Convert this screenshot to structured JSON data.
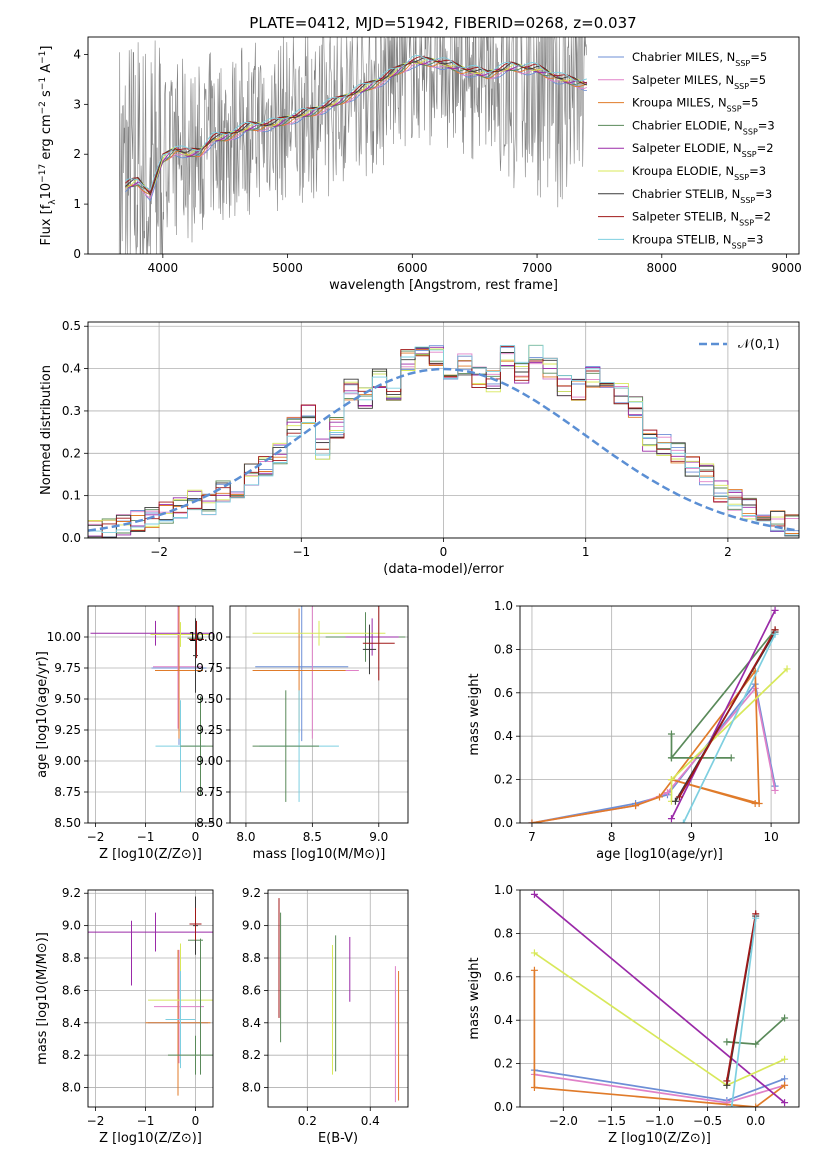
{
  "figure": {
    "title": "PLATE=0412, MJD=51942, FIBERID=0268, z=0.037"
  },
  "colors": {
    "chabrier_miles": "#6d8fd6",
    "salpeter_miles": "#e081c8",
    "kroupa_miles": "#e07b2a",
    "chabrier_elodie": "#5a8a5a",
    "salpeter_elodie": "#9a2aa8",
    "kroupa_elodie": "#d8e85a",
    "chabrier_stelib": "#3a3a3a",
    "salpeter_stelib": "#a01818",
    "kroupa_stelib": "#7ecfe0",
    "data": "#808080",
    "normal": "#5b8fd4"
  },
  "legend": [
    {
      "name": "Chabrier MILES",
      "n": "5",
      "color_key": "chabrier_miles"
    },
    {
      "name": "Salpeter MILES",
      "n": "5",
      "color_key": "salpeter_miles"
    },
    {
      "name": "Kroupa MILES",
      "n": "5",
      "color_key": "kroupa_miles"
    },
    {
      "name": "Chabrier ELODIE",
      "n": "3",
      "color_key": "chabrier_elodie"
    },
    {
      "name": "Salpeter ELODIE",
      "n": "2",
      "color_key": "salpeter_elodie"
    },
    {
      "name": "Kroupa ELODIE",
      "n": "3",
      "color_key": "kroupa_elodie"
    },
    {
      "name": "Chabrier STELIB",
      "n": "3",
      "color_key": "chabrier_stelib"
    },
    {
      "name": "Salpeter STELIB",
      "n": "2",
      "color_key": "salpeter_stelib"
    },
    {
      "name": "Kroupa STELIB",
      "n": "3",
      "color_key": "kroupa_stelib"
    }
  ],
  "legend_n_prefix": "N",
  "legend_n_sub": "SSP",
  "chart_data": [
    {
      "id": "spectrum",
      "type": "line",
      "xlabel": "wavelength [Angstrom, rest frame]",
      "ylabel_parts": [
        "Flux [f",
        "λ",
        "10",
        "−17",
        " erg cm",
        "−2",
        " s",
        "−1",
        " A",
        "−1",
        "]"
      ],
      "xlim": [
        3400,
        9100
      ],
      "ylim": [
        0,
        4.35
      ],
      "xticks": [
        "4000",
        "5000",
        "6000",
        "7000",
        "8000",
        "9000"
      ],
      "xtick_values": [
        4000,
        5000,
        6000,
        7000,
        8000,
        9000
      ],
      "yticks": [
        "0",
        "1",
        "2",
        "3",
        "4"
      ],
      "ytick_values": [
        0,
        1,
        2,
        3,
        4
      ],
      "grid": false,
      "legend_position": "upper-right",
      "data_range": [
        3650,
        7400
      ],
      "model_knots_x": [
        3700,
        3800,
        3900,
        4000,
        4100,
        4200,
        4300,
        4400,
        4500,
        4700,
        4900,
        5000,
        5200,
        5400,
        5600,
        5800,
        6000,
        6200,
        6400,
        6600,
        6800,
        7000,
        7200,
        7400
      ],
      "model_knots_y": [
        1.35,
        1.45,
        1.2,
        1.9,
        2.1,
        2.0,
        2.05,
        2.3,
        2.35,
        2.55,
        2.6,
        2.7,
        2.85,
        3.05,
        3.3,
        3.55,
        3.85,
        3.85,
        3.7,
        3.6,
        3.75,
        3.7,
        3.5,
        3.4
      ]
    },
    {
      "id": "residuals",
      "type": "bar",
      "xlabel": "(data-model)/error",
      "ylabel": "Normed distribution",
      "xlim": [
        -2.5,
        2.5
      ],
      "ylim": [
        0,
        0.51
      ],
      "xticks": [
        "−2",
        "−1",
        "0",
        "1",
        "2"
      ],
      "xtick_values": [
        -2,
        -1,
        0,
        1,
        2
      ],
      "yticks": [
        "0.0",
        "0.1",
        "0.2",
        "0.3",
        "0.4",
        "0.5"
      ],
      "ytick_values": [
        0,
        0.1,
        0.2,
        0.3,
        0.4,
        0.5
      ],
      "grid": true,
      "legend": "𝒩(0,1)",
      "legend_position": "upper-right",
      "bin_width": 0.1,
      "bin_start": -2.5,
      "hist_values": [
        0.02,
        0.02,
        0.03,
        0.04,
        0.05,
        0.06,
        0.07,
        0.09,
        0.08,
        0.11,
        0.12,
        0.15,
        0.17,
        0.2,
        0.26,
        0.29,
        0.21,
        0.26,
        0.35,
        0.33,
        0.38,
        0.35,
        0.42,
        0.44,
        0.43,
        0.36,
        0.41,
        0.38,
        0.37,
        0.43,
        0.39,
        0.43,
        0.4,
        0.36,
        0.35,
        0.38,
        0.35,
        0.34,
        0.31,
        0.23,
        0.22,
        0.2,
        0.17,
        0.15,
        0.11,
        0.09,
        0.07,
        0.06,
        0.04,
        0.03
      ]
    },
    {
      "id": "age_vs_Z",
      "type": "scatter",
      "xlabel": "Z [log10(Z/Z⊙)]",
      "ylabel": "age  [log10(age/yr)]",
      "xlim": [
        -2.15,
        0.35
      ],
      "ylim": [
        8.5,
        10.25
      ],
      "xticks": [
        "−2",
        "−1",
        "0"
      ],
      "xtick_values": [
        -2,
        -1,
        0
      ],
      "yticks": [
        "8.50",
        "8.75",
        "9.00",
        "9.25",
        "9.50",
        "9.75",
        "10.00"
      ],
      "ytick_values": [
        8.5,
        8.75,
        9.0,
        9.25,
        9.5,
        9.75,
        10.0
      ],
      "grid": true,
      "points": [
        {
          "x": -0.33,
          "y": 9.75,
          "xerr": 0.55,
          "yerr": 0.62,
          "c": "chabrier_miles"
        },
        {
          "x": -0.35,
          "y": 9.76,
          "xerr": 0.5,
          "yerr": 0.5,
          "c": "salpeter_miles"
        },
        {
          "x": -0.33,
          "y": 9.73,
          "xerr": 0.48,
          "yerr": 0.55,
          "c": "kroupa_miles"
        },
        {
          "x": 0.0,
          "y": 9.99,
          "xerr": 0.16,
          "yerr": 0.16,
          "c": "chabrier_elodie"
        },
        {
          "x": -0.8,
          "y": 10.03,
          "xerr": 1.3,
          "yerr": 0.1,
          "c": "salpeter_elodie"
        },
        {
          "x": -0.3,
          "y": 10.02,
          "xerr": 0.6,
          "yerr": 0.1,
          "c": "kroupa_elodie"
        },
        {
          "x": 0.0,
          "y": 9.85,
          "xerr": 0.05,
          "yerr": 0.3,
          "c": "chabrier_stelib"
        },
        {
          "x": 0.02,
          "y": 9.98,
          "xerr": 0.15,
          "yerr": 0.15,
          "c": "salpeter_stelib"
        },
        {
          "x": -0.3,
          "y": 9.12,
          "xerr": 0.5,
          "yerr": 0.37,
          "c": "kroupa_stelib"
        },
        {
          "x": 0.1,
          "y": 9.12,
          "xerr": 0.4,
          "yerr": 0.4,
          "c": "chabrier_elodie"
        }
      ]
    },
    {
      "id": "age_vs_mass",
      "type": "scatter",
      "xlabel": "mass [log10(M/M⊙)]",
      "xlim": [
        7.88,
        9.22
      ],
      "ylim": [
        8.5,
        10.25
      ],
      "xticks": [
        "8.0",
        "8.5",
        "9.0"
      ],
      "xtick_values": [
        8.0,
        8.5,
        9.0
      ],
      "yticks": [
        "8.50",
        "8.75",
        "9.00",
        "9.25",
        "9.50",
        "9.75",
        "10.00"
      ],
      "ytick_values": [
        8.5,
        8.75,
        9.0,
        9.25,
        9.5,
        9.75,
        10.0
      ],
      "grid": true,
      "points": [
        {
          "x": 8.42,
          "y": 9.76,
          "xerr": 0.35,
          "yerr": 0.6,
          "c": "chabrier_miles"
        },
        {
          "x": 8.5,
          "y": 9.73,
          "xerr": 0.35,
          "yerr": 0.55,
          "c": "salpeter_miles"
        },
        {
          "x": 8.4,
          "y": 9.73,
          "xerr": 0.35,
          "yerr": 0.5,
          "c": "kroupa_miles"
        },
        {
          "x": 8.9,
          "y": 10.0,
          "xerr": 0.3,
          "yerr": 0.2,
          "c": "chabrier_elodie"
        },
        {
          "x": 8.95,
          "y": 10.0,
          "xerr": 0.2,
          "yerr": 0.15,
          "c": "salpeter_elodie"
        },
        {
          "x": 8.55,
          "y": 10.03,
          "xerr": 0.5,
          "yerr": 0.1,
          "c": "kroupa_elodie"
        },
        {
          "x": 8.93,
          "y": 9.9,
          "xerr": 0.05,
          "yerr": 0.2,
          "c": "chabrier_stelib"
        },
        {
          "x": 9.0,
          "y": 9.95,
          "xerr": 0.12,
          "yerr": 0.3,
          "c": "salpeter_stelib"
        },
        {
          "x": 8.4,
          "y": 9.12,
          "xerr": 0.3,
          "yerr": 0.45,
          "c": "kroupa_stelib"
        },
        {
          "x": 8.3,
          "y": 9.12,
          "xerr": 0.25,
          "yerr": 0.45,
          "c": "chabrier_elodie"
        }
      ]
    },
    {
      "id": "weight_vs_age",
      "type": "line",
      "xlabel": "age  [log10(age/yr)]",
      "ylabel": "mass weight",
      "xlim": [
        6.85,
        10.35
      ],
      "ylim": [
        0,
        1.0
      ],
      "xticks": [
        "7",
        "8",
        "9",
        "10"
      ],
      "xtick_values": [
        7,
        8,
        9,
        10
      ],
      "yticks": [
        "0.0",
        "0.2",
        "0.4",
        "0.6",
        "0.8",
        "1.0"
      ],
      "ytick_values": [
        0,
        0.2,
        0.4,
        0.6,
        0.8,
        1.0
      ],
      "grid": true,
      "series": [
        {
          "c": "chabrier_miles",
          "x": [
            7.0,
            8.3,
            8.7,
            9.8,
            10.05
          ],
          "y": [
            0.0,
            0.09,
            0.13,
            0.64,
            0.17
          ]
        },
        {
          "c": "salpeter_miles",
          "x": [
            7.0,
            8.3,
            8.7,
            9.8,
            10.05
          ],
          "y": [
            0.0,
            0.08,
            0.14,
            0.62,
            0.15
          ]
        },
        {
          "c": "kroupa_miles",
          "x": [
            7.0,
            8.3,
            8.6,
            9.8,
            9.85,
            8.75,
            9.8
          ],
          "y": [
            0.0,
            0.08,
            0.12,
            0.7,
            0.09,
            0.2,
            0.09
          ]
        },
        {
          "c": "chabrier_elodie",
          "x": [
            8.75,
            8.75,
            9.5,
            8.75,
            10.05
          ],
          "y": [
            0.41,
            0.3,
            0.3,
            0.3,
            0.89
          ]
        },
        {
          "c": "salpeter_elodie",
          "x": [
            8.75,
            10.05
          ],
          "y": [
            0.02,
            0.98
          ]
        },
        {
          "c": "kroupa_elodie",
          "x": [
            8.75,
            8.75,
            10.2
          ],
          "y": [
            0.1,
            0.2,
            0.71
          ]
        },
        {
          "c": "chabrier_stelib",
          "x": [
            8.8,
            10.05
          ],
          "y": [
            0.1,
            0.88
          ]
        },
        {
          "c": "salpeter_stelib",
          "x": [
            8.85,
            10.05
          ],
          "y": [
            0.12,
            0.89
          ]
        },
        {
          "c": "kroupa_stelib",
          "x": [
            8.9,
            10.05
          ],
          "y": [
            0.0,
            0.87
          ]
        }
      ]
    },
    {
      "id": "mass_vs_Z",
      "type": "scatter",
      "xlabel": "Z [log10(Z/Z⊙)]",
      "ylabel": "mass [log10(M/M⊙)]",
      "xlim": [
        -2.15,
        0.35
      ],
      "ylim": [
        7.88,
        9.22
      ],
      "xticks": [
        "−2",
        "−1",
        "0"
      ],
      "xtick_values": [
        -2,
        -1,
        0
      ],
      "yticks": [
        "8.0",
        "8.2",
        "8.4",
        "8.6",
        "8.8",
        "9.0",
        "9.2"
      ],
      "ytick_values": [
        8.0,
        8.2,
        8.4,
        8.6,
        8.8,
        9.0,
        9.2
      ],
      "grid": true,
      "points": [
        {
          "x": -0.35,
          "y": 8.4,
          "xerr": 0.6,
          "yerr": 0.35,
          "c": "chabrier_miles"
        },
        {
          "x": -0.33,
          "y": 8.5,
          "xerr": 0.5,
          "yerr": 0.35,
          "c": "salpeter_miles"
        },
        {
          "x": -0.35,
          "y": 8.4,
          "xerr": 0.65,
          "yerr": 0.45,
          "c": "kroupa_miles"
        },
        {
          "x": 0.0,
          "y": 8.91,
          "xerr": 0.15,
          "yerr": 0.05,
          "c": "chabrier_elodie"
        },
        {
          "x": -0.8,
          "y": 8.96,
          "xerr": 1.35,
          "yerr": 0.12,
          "c": "salpeter_elodie"
        },
        {
          "x": -0.3,
          "y": 8.54,
          "xerr": 0.65,
          "yerr": 0.35,
          "c": "kroupa_elodie"
        },
        {
          "x": 0.0,
          "y": 9.0,
          "xerr": 0.05,
          "yerr": 0.18,
          "c": "chabrier_stelib"
        },
        {
          "x": 0.0,
          "y": 9.01,
          "xerr": 0.12,
          "yerr": 0.1,
          "c": "salpeter_stelib"
        },
        {
          "x": -0.3,
          "y": 8.42,
          "xerr": 0.3,
          "yerr": 0.3,
          "c": "kroupa_stelib"
        },
        {
          "x": 0.0,
          "y": 8.2,
          "xerr": 0.55,
          "yerr": 0.12,
          "c": "chabrier_elodie"
        },
        {
          "x": -1.28,
          "y": 8.83,
          "xerr": 0.0,
          "yerr": 0.2,
          "c": "salpeter_elodie"
        },
        {
          "x": 0.1,
          "y": 8.5,
          "xerr": 0.0,
          "yerr": 0.42,
          "c": "chabrier_elodie"
        }
      ]
    },
    {
      "id": "mass_vs_ebv",
      "type": "scatter",
      "xlabel": "E(B-V)",
      "xlim": [
        0.075,
        0.52
      ],
      "ylim": [
        7.88,
        9.22
      ],
      "xticks": [
        "0.2",
        "0.4"
      ],
      "xtick_values": [
        0.2,
        0.4
      ],
      "yticks": [
        "8.0",
        "8.2",
        "8.4",
        "8.6",
        "8.8",
        "9.0",
        "9.2"
      ],
      "ytick_values": [
        8.0,
        8.2,
        8.4,
        8.6,
        8.8,
        9.0,
        9.2
      ],
      "grid": true,
      "points": [
        {
          "x": 0.11,
          "y": 8.8,
          "xerr": 0.0,
          "yerr": 0.37,
          "c": "salpeter_stelib"
        },
        {
          "x": 0.115,
          "y": 8.68,
          "xerr": 0.0,
          "yerr": 0.4,
          "c": "chabrier_elodie"
        },
        {
          "x": 0.28,
          "y": 8.48,
          "xerr": 0.0,
          "yerr": 0.4,
          "c": "kroupa_elodie"
        },
        {
          "x": 0.29,
          "y": 8.52,
          "xerr": 0.0,
          "yerr": 0.42,
          "c": "chabrier_elodie"
        },
        {
          "x": 0.335,
          "y": 8.73,
          "xerr": 0.0,
          "yerr": 0.2,
          "c": "salpeter_elodie"
        },
        {
          "x": 0.48,
          "y": 8.33,
          "xerr": 0.0,
          "yerr": 0.42,
          "c": "salpeter_miles"
        },
        {
          "x": 0.49,
          "y": 8.32,
          "xerr": 0.0,
          "yerr": 0.4,
          "c": "kroupa_miles"
        }
      ]
    },
    {
      "id": "weight_vs_Z",
      "type": "line",
      "xlabel": "Z [log10(Z/Z⊙)]",
      "ylabel": "mass weight",
      "xlim": [
        -2.45,
        0.45
      ],
      "ylim": [
        0,
        1.0
      ],
      "xticks": [
        "−2.0",
        "−1.5",
        "−1.0",
        "−0.5",
        "0.0"
      ],
      "xtick_values": [
        -2.0,
        -1.5,
        -1.0,
        -0.5,
        0.0
      ],
      "yticks": [
        "0.0",
        "0.2",
        "0.4",
        "0.6",
        "0.8",
        "1.0"
      ],
      "ytick_values": [
        0,
        0.2,
        0.4,
        0.6,
        0.8,
        1.0
      ],
      "grid": true,
      "series": [
        {
          "c": "chabrier_miles",
          "x": [
            -2.3,
            -0.3,
            0.3
          ],
          "y": [
            0.17,
            0.03,
            0.13
          ]
        },
        {
          "c": "salpeter_miles",
          "x": [
            -2.3,
            -0.3,
            0.3
          ],
          "y": [
            0.15,
            0.02,
            0.1
          ]
        },
        {
          "c": "kroupa_miles",
          "x": [
            -2.3,
            -2.3,
            0.0,
            0.3
          ],
          "y": [
            0.63,
            0.09,
            0.0,
            0.1
          ]
        },
        {
          "c": "chabrier_elodie",
          "x": [
            -0.3,
            0.0,
            0.3
          ],
          "y": [
            0.3,
            0.29,
            0.41
          ]
        },
        {
          "c": "salpeter_elodie",
          "x": [
            -2.3,
            0.3
          ],
          "y": [
            0.98,
            0.02
          ]
        },
        {
          "c": "kroupa_elodie",
          "x": [
            -2.3,
            -0.3,
            0.3
          ],
          "y": [
            0.71,
            0.1,
            0.22
          ]
        },
        {
          "c": "chabrier_stelib",
          "x": [
            -0.3,
            0.0
          ],
          "y": [
            0.1,
            0.88
          ]
        },
        {
          "c": "salpeter_stelib",
          "x": [
            -0.3,
            0.0
          ],
          "y": [
            0.12,
            0.89
          ]
        },
        {
          "c": "kroupa_stelib",
          "x": [
            -0.25,
            0.0
          ],
          "y": [
            0.0,
            0.87
          ]
        }
      ]
    }
  ]
}
